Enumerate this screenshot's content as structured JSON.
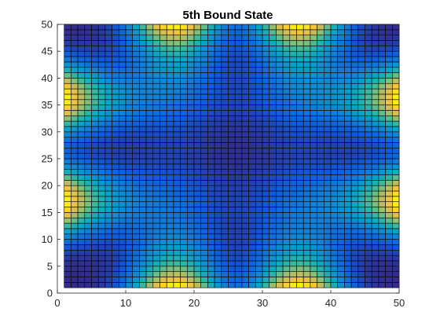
{
  "chart_data": {
    "type": "heatmap",
    "title": "5th Bound State",
    "xlabel": "",
    "ylabel": "",
    "xlim": [
      0,
      50
    ],
    "ylim": [
      0,
      50
    ],
    "x_ticks": [
      0,
      10,
      20,
      30,
      40,
      50
    ],
    "y_ticks": [
      0,
      5,
      10,
      15,
      20,
      25,
      30,
      35,
      40,
      45,
      50
    ],
    "grid_size": [
      49,
      49
    ],
    "grid_lines": true,
    "colormap": "parula",
    "colormap_stops": [
      "#352A87",
      "#0F5CDD",
      "#1481D6",
      "#06A4CA",
      "#2EB7A4",
      "#87BF77",
      "#D1BB59",
      "#FEC832",
      "#F9FB0E"
    ],
    "description_formula": "|sin(pi*x/nx*3)*sin(pi*y/ny*3)|-like lobes",
    "mesh_color": "#000000"
  }
}
